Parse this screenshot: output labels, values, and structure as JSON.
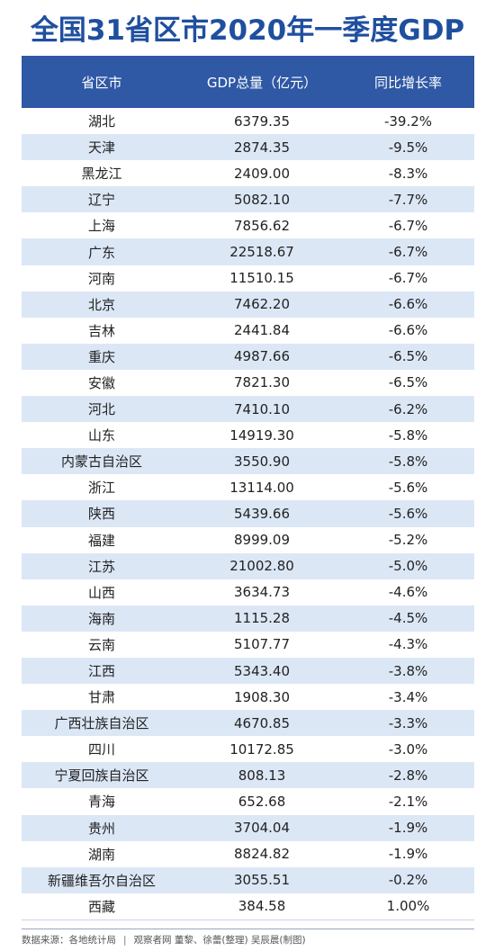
{
  "title": "全国31省区市2020年一季度GDP",
  "table": {
    "headers": [
      "省区市",
      "GDP总量（亿元）",
      "同比增长率"
    ],
    "rows": [
      [
        "湖北",
        "6379.35",
        "-39.2%"
      ],
      [
        "天津",
        "2874.35",
        "-9.5%"
      ],
      [
        "黑龙江",
        "2409.00",
        "-8.3%"
      ],
      [
        "辽宁",
        "5082.10",
        "-7.7%"
      ],
      [
        "上海",
        "7856.62",
        "-6.7%"
      ],
      [
        "广东",
        "22518.67",
        "-6.7%"
      ],
      [
        "河南",
        "11510.15",
        "-6.7%"
      ],
      [
        "北京",
        "7462.20",
        "-6.6%"
      ],
      [
        "吉林",
        "2441.84",
        "-6.6%"
      ],
      [
        "重庆",
        "4987.66",
        "-6.5%"
      ],
      [
        "安徽",
        "7821.30",
        "-6.5%"
      ],
      [
        "河北",
        "7410.10",
        "-6.2%"
      ],
      [
        "山东",
        "14919.30",
        "-5.8%"
      ],
      [
        "内蒙古自治区",
        "3550.90",
        "-5.8%"
      ],
      [
        "浙江",
        "13114.00",
        "-5.6%"
      ],
      [
        "陕西",
        "5439.66",
        "-5.6%"
      ],
      [
        "福建",
        "8999.09",
        "-5.2%"
      ],
      [
        "江苏",
        "21002.80",
        "-5.0%"
      ],
      [
        "山西",
        "3634.73",
        "-4.6%"
      ],
      [
        "海南",
        "1115.28",
        "-4.5%"
      ],
      [
        "云南",
        "5107.77",
        "-4.3%"
      ],
      [
        "江西",
        "5343.40",
        "-3.8%"
      ],
      [
        "甘肃",
        "1908.30",
        "-3.4%"
      ],
      [
        "广西壮族自治区",
        "4670.85",
        "-3.3%"
      ],
      [
        "四川",
        "10172.85",
        "-3.0%"
      ],
      [
        "宁夏回族自治区",
        "808.13",
        "-2.8%"
      ],
      [
        "青海",
        "652.68",
        "-2.1%"
      ],
      [
        "贵州",
        "3704.04",
        "-1.9%"
      ],
      [
        "湖南",
        "8824.82",
        "-1.9%"
      ],
      [
        "新疆维吾尔自治区",
        "3055.51",
        "-0.2%"
      ],
      [
        "西藏",
        "384.58",
        "1.00%"
      ]
    ]
  },
  "footer": {
    "source": "数据来源：各地统计局",
    "separator": "|",
    "credit": "观察者网 董黎、徐蕾(整理) 吴辰晨(制图)"
  }
}
